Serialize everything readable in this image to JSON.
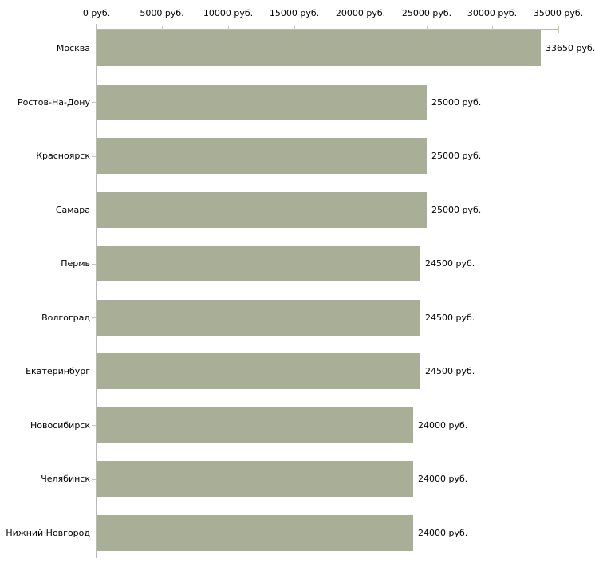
{
  "chart_data": {
    "type": "bar",
    "orientation": "horizontal",
    "title": "",
    "xlabel": "",
    "ylabel": "",
    "unit": "руб.",
    "categories": [
      "Москва",
      "Ростов-На-Дону",
      "Красноярск",
      "Самара",
      "Пермь",
      "Волгоград",
      "Екатеринбург",
      "Новосибирск",
      "Челябинск",
      "Нижний Новгород"
    ],
    "values": [
      33650,
      25000,
      25000,
      25000,
      24500,
      24500,
      24500,
      24000,
      24000,
      24000
    ],
    "value_labels": [
      "33650 руб.",
      "25000 руб.",
      "25000 руб.",
      "25000 руб.",
      "24500 руб.",
      "24500 руб.",
      "24500 руб.",
      "24000 руб.",
      "24000 руб.",
      "24000 руб."
    ],
    "x_axis": {
      "min": 0,
      "max": 35000,
      "tick_values": [
        0,
        5000,
        10000,
        15000,
        20000,
        25000,
        30000,
        35000
      ],
      "tick_labels": [
        "0 руб.",
        "5000 руб.",
        "10000 руб.",
        "15000 руб.",
        "20000 руб.",
        "25000 руб.",
        "30000 руб.",
        "35000 руб."
      ],
      "position": "top",
      "grid": false
    },
    "legend": null,
    "colors": {
      "bar": "#a9af96",
      "axis_line": "#b9b9b9",
      "axis_tick": "#c9cba1",
      "category_tick": "#c6c8ad",
      "text": "#000000",
      "background": "#ffffff"
    }
  }
}
